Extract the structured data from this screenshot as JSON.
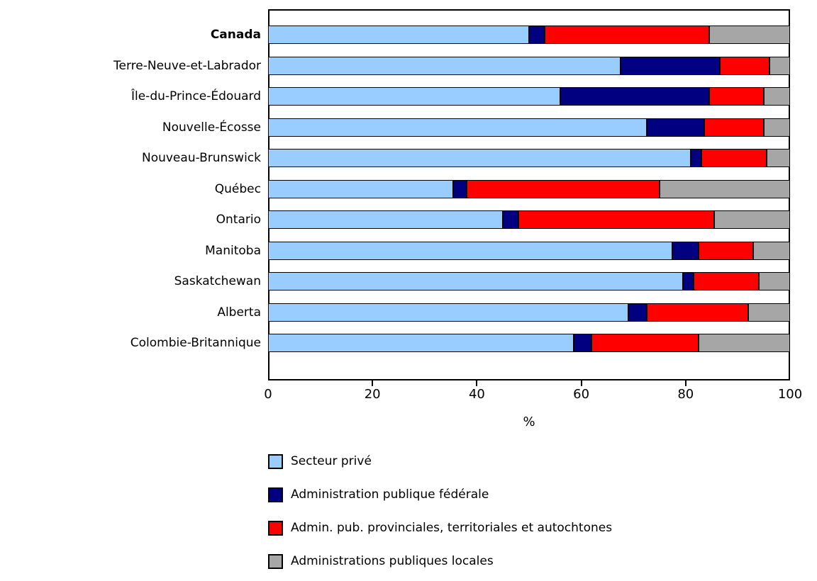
{
  "chart_data": {
    "type": "bar",
    "orientation": "horizontal",
    "stacked": true,
    "title": "",
    "xlabel": "%",
    "xlim": [
      0,
      100
    ],
    "xticks": [
      0,
      20,
      40,
      60,
      80,
      100
    ],
    "grid": false,
    "legend_position": "bottom-left",
    "highlight_category": "Canada",
    "categories": [
      "Canada",
      "Terre-Neuve-et-Labrador",
      "Île-du-Prince-Édouard",
      "Nouvelle-Écosse",
      "Nouveau-Brunswick",
      "Québec",
      "Ontario",
      "Manitoba",
      "Saskatchewan",
      "Alberta",
      "Colombie-Britannique"
    ],
    "series": [
      {
        "name": "Secteur privé",
        "color": "#99CCFF",
        "values": [
          50,
          67.5,
          56,
          72.5,
          81,
          35.5,
          45,
          77.5,
          79.5,
          69,
          58.5
        ]
      },
      {
        "name": "Administration publique fédérale",
        "color": "#000080",
        "values": [
          3,
          19,
          28.5,
          11,
          2,
          2.5,
          3,
          5,
          2,
          3.5,
          3.5
        ]
      },
      {
        "name": "Admin. pub. provinciales, territoriales et autochtones",
        "color": "#FF0000",
        "values": [
          31.5,
          9.5,
          10.5,
          11.5,
          12.5,
          37,
          37.5,
          10.5,
          12.5,
          19.5,
          20.5
        ]
      },
      {
        "name": "Administrations publiques locales",
        "color": "#A6A6A6",
        "values": [
          15.5,
          4,
          5,
          5,
          4.5,
          25,
          14.5,
          7,
          6,
          8,
          17.5
        ]
      }
    ]
  },
  "axis": {
    "unit_label": "%"
  },
  "layout_colors": {
    "frame_border": "#000000",
    "background": "#FFFFFF"
  }
}
